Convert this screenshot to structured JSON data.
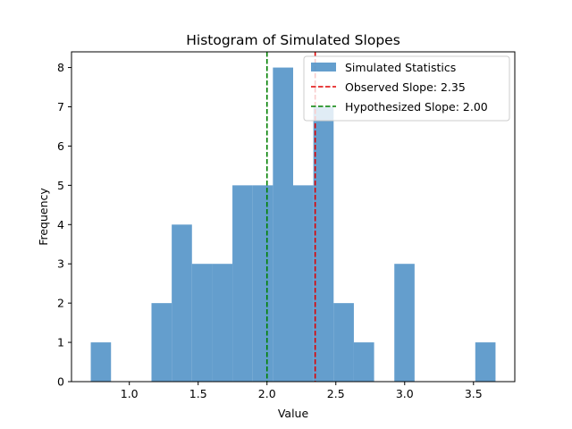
{
  "chart_data": {
    "type": "histogram",
    "title": "Histogram of Simulated Slopes",
    "xlabel": "Value",
    "ylabel": "Frequency",
    "xlim": [
      0.58,
      3.8
    ],
    "ylim": [
      0,
      8.4
    ],
    "xticks": [
      1.0,
      1.5,
      2.0,
      2.5,
      3.0,
      3.5
    ],
    "xtick_labels": [
      "1.0",
      "1.5",
      "2.0",
      "2.5",
      "3.0",
      "3.5"
    ],
    "yticks": [
      0,
      1,
      2,
      3,
      4,
      5,
      6,
      7,
      8
    ],
    "ytick_labels": [
      "0",
      "1",
      "2",
      "3",
      "4",
      "5",
      "6",
      "7",
      "8"
    ],
    "bin_start": 0.72,
    "bin_width": 0.147,
    "counts": [
      1,
      0,
      0,
      2,
      4,
      3,
      3,
      5,
      5,
      8,
      5,
      7,
      2,
      1,
      0,
      3,
      0,
      0,
      0,
      1
    ],
    "bar_color": "#4f91c6",
    "bar_opacity": 0.88,
    "series": [
      {
        "name": "Simulated Statistics"
      }
    ],
    "reference_lines": [
      {
        "name": "Observed Slope: 2.35",
        "x": 2.35,
        "color": "#e00000",
        "style": "dashed"
      },
      {
        "name": "Hypothesized Slope: 2.00",
        "x": 2.0,
        "color": "#008000",
        "style": "dashed"
      }
    ],
    "legend_position": "upper-right",
    "grid": false
  }
}
